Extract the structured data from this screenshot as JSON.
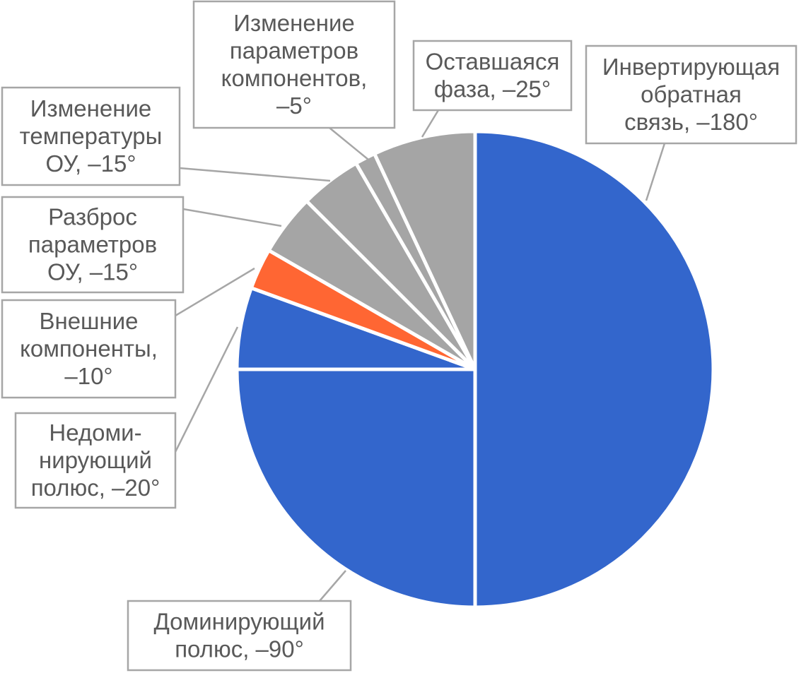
{
  "chart_data": {
    "type": "pie",
    "title": "",
    "unit": "°",
    "slices": [
      {
        "label": "Инвертирующая обратная связь, –180°",
        "value": 180,
        "color": "#3366CC"
      },
      {
        "label": "Доминирующий полюс, –90°",
        "value": 90,
        "color": "#3366CC"
      },
      {
        "label": "Недоминирующий полюс, –20°",
        "value": 20,
        "color": "#3366CC"
      },
      {
        "label": "Внешние компоненты, –10°",
        "value": 10,
        "color": "#FF6633"
      },
      {
        "label": "Разброс параметров ОУ, –15°",
        "value": 15,
        "color": "#A5A5A5"
      },
      {
        "label": "Изменение температуры ОУ, –15°",
        "value": 15,
        "color": "#A5A5A5"
      },
      {
        "label": "Изменение параметров компонентов, –5°",
        "value": 5,
        "color": "#A5A5A5"
      },
      {
        "label": "Оставшаяся фаза, –25°",
        "value": 25,
        "color": "#A5A5A5"
      }
    ],
    "label_lines": [
      [
        "Инвертирующая",
        "обратная",
        "связь, –180°"
      ],
      [
        "Доминирующий",
        "полюс, –90°"
      ],
      [
        "Недоми-",
        "нирующий",
        "полюс, –20°"
      ],
      [
        "Внешние",
        "компоненты,",
        "–10°"
      ],
      [
        "Разброс",
        "параметров",
        "ОУ, –15°"
      ],
      [
        "Изменение",
        "температуры",
        "ОУ, –15°"
      ],
      [
        "Изменение",
        "параметров",
        "компонентов,",
        "–5°"
      ],
      [
        "Оставшаяся",
        "фаза, –25°"
      ]
    ]
  }
}
